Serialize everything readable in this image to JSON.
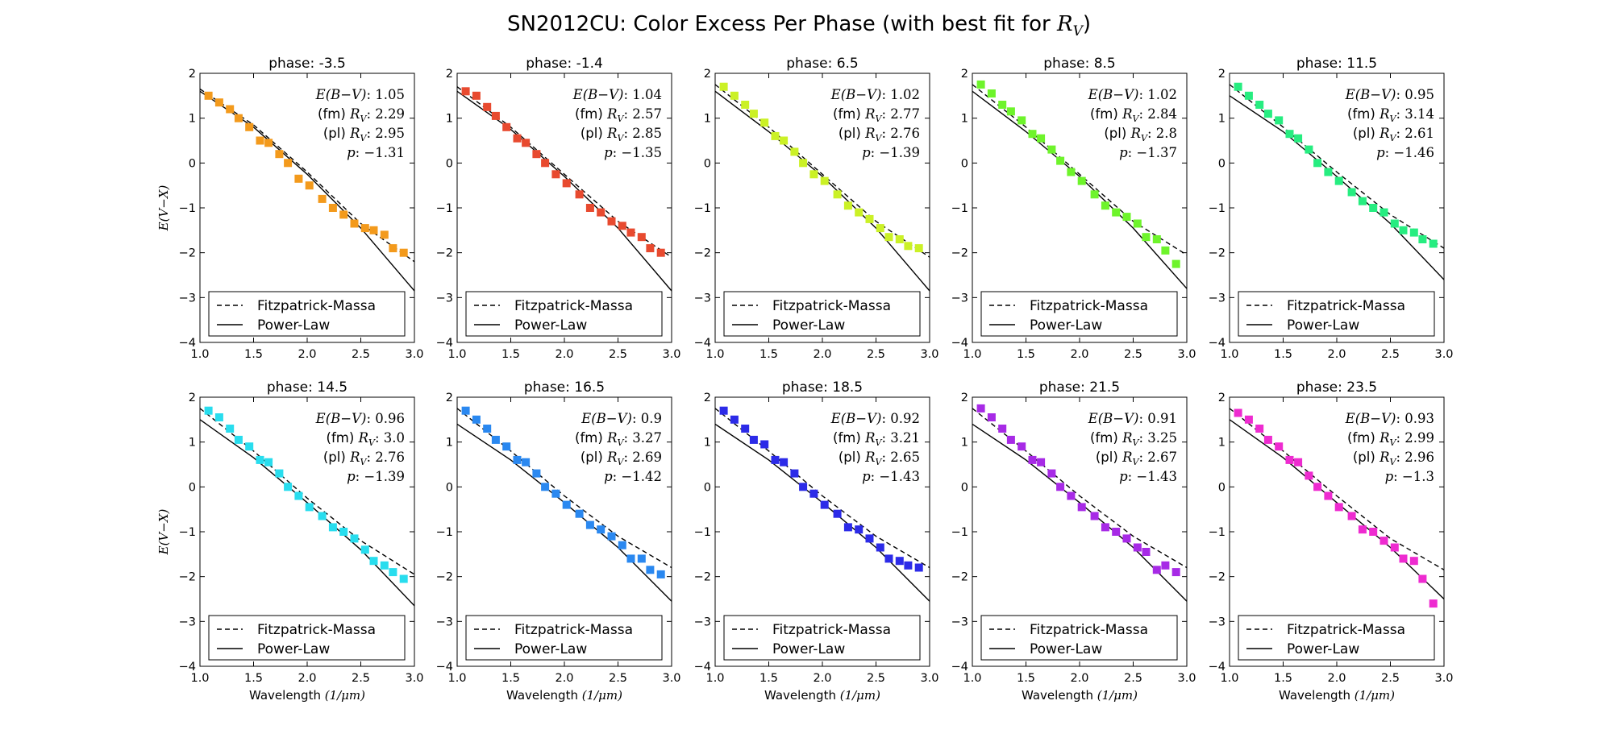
{
  "figure": {
    "title_prefix": "SN2012CU: Color Excess Per Phase (with best fit for ",
    "title_math": "R",
    "title_math_sub": "V",
    "title_suffix": ")"
  },
  "legend": [
    "Fitzpatrick-Massa",
    "Power-Law"
  ],
  "annotation_labels": {
    "ebv_label": "E(B−V)",
    "fm_prefix": "(fm) ",
    "pl_prefix": "(pl) ",
    "rv_label": "R",
    "rv_sub": "V",
    "p_label": "p"
  },
  "axes": {
    "xlabel_text": "Wavelength ",
    "xlabel_math": "(1/μm)",
    "ylabel_math": "E(V−X)",
    "xlim": [
      1.0,
      3.0
    ],
    "ylim": [
      -4,
      2
    ],
    "xticks": [
      "1.0",
      "1.5",
      "2.0",
      "2.5",
      "3.0"
    ],
    "yticks": [
      "2",
      "1",
      "0",
      "−1",
      "−2",
      "−3",
      "−4"
    ]
  },
  "chart_data": [
    {
      "type": "scatter",
      "phase": "phase: -3.5",
      "color": "#f39a1c",
      "ebv": "1.05",
      "rv_fm": "2.29",
      "rv_pl": "2.95",
      "p": "−1.31",
      "x": [
        1.08,
        1.18,
        1.28,
        1.36,
        1.46,
        1.56,
        1.64,
        1.74,
        1.82,
        1.92,
        2.02,
        2.14,
        2.24,
        2.34,
        2.44,
        2.54,
        2.62,
        2.72,
        2.8,
        2.9
      ],
      "y": [
        1.5,
        1.35,
        1.2,
        1.0,
        0.8,
        0.5,
        0.45,
        0.2,
        0.0,
        -0.35,
        -0.5,
        -0.8,
        -1.0,
        -1.15,
        -1.35,
        -1.45,
        -1.5,
        -1.6,
        -1.9,
        -2.0
      ],
      "fm": [
        [
          1.0,
          1.65
        ],
        [
          1.5,
          0.85
        ],
        [
          2.0,
          -0.2
        ],
        [
          2.5,
          -1.35
        ],
        [
          3.0,
          -2.2
        ]
      ],
      "pl": [
        [
          1.0,
          1.6
        ],
        [
          1.5,
          0.8
        ],
        [
          2.0,
          -0.25
        ],
        [
          2.5,
          -1.45
        ],
        [
          3.0,
          -2.85
        ]
      ]
    },
    {
      "type": "scatter",
      "phase": "phase: -1.4",
      "color": "#e84a2f",
      "ebv": "1.04",
      "rv_fm": "2.57",
      "rv_pl": "2.85",
      "p": "−1.35",
      "x": [
        1.08,
        1.18,
        1.28,
        1.36,
        1.46,
        1.56,
        1.64,
        1.74,
        1.82,
        1.92,
        2.02,
        2.14,
        2.24,
        2.34,
        2.44,
        2.54,
        2.62,
        2.72,
        2.8,
        2.9
      ],
      "y": [
        1.6,
        1.5,
        1.25,
        1.05,
        0.8,
        0.55,
        0.45,
        0.2,
        0.0,
        -0.25,
        -0.45,
        -0.7,
        -1.0,
        -1.1,
        -1.3,
        -1.4,
        -1.55,
        -1.65,
        -1.9,
        -2.0
      ],
      "fm": [
        [
          1.0,
          1.7
        ],
        [
          1.5,
          0.8
        ],
        [
          2.0,
          -0.25
        ],
        [
          2.5,
          -1.3
        ],
        [
          3.0,
          -2.1
        ]
      ],
      "pl": [
        [
          1.0,
          1.6
        ],
        [
          1.5,
          0.75
        ],
        [
          2.0,
          -0.3
        ],
        [
          2.5,
          -1.45
        ],
        [
          3.0,
          -2.85
        ]
      ]
    },
    {
      "type": "scatter",
      "phase": "phase: 6.5",
      "color": "#cbf126",
      "ebv": "1.02",
      "rv_fm": "2.77",
      "rv_pl": "2.76",
      "p": "−1.39",
      "x": [
        1.08,
        1.18,
        1.28,
        1.36,
        1.46,
        1.56,
        1.64,
        1.74,
        1.82,
        1.92,
        2.02,
        2.14,
        2.24,
        2.34,
        2.44,
        2.54,
        2.62,
        2.72,
        2.8,
        2.9
      ],
      "y": [
        1.7,
        1.5,
        1.3,
        1.1,
        0.9,
        0.6,
        0.5,
        0.25,
        0.0,
        -0.25,
        -0.4,
        -0.7,
        -0.95,
        -1.1,
        -1.25,
        -1.45,
        -1.65,
        -1.7,
        -1.85,
        -1.9
      ],
      "fm": [
        [
          1.0,
          1.75
        ],
        [
          1.5,
          0.8
        ],
        [
          2.0,
          -0.25
        ],
        [
          2.5,
          -1.3
        ],
        [
          3.0,
          -2.1
        ]
      ],
      "pl": [
        [
          1.0,
          1.6
        ],
        [
          1.5,
          0.7
        ],
        [
          2.0,
          -0.3
        ],
        [
          2.5,
          -1.45
        ],
        [
          3.0,
          -2.85
        ]
      ]
    },
    {
      "type": "scatter",
      "phase": "phase: 8.5",
      "color": "#6ef42b",
      "ebv": "1.02",
      "rv_fm": "2.84",
      "rv_pl": "2.8",
      "p": "−1.37",
      "x": [
        1.08,
        1.18,
        1.28,
        1.36,
        1.46,
        1.56,
        1.64,
        1.74,
        1.82,
        1.92,
        2.02,
        2.14,
        2.24,
        2.34,
        2.44,
        2.54,
        2.62,
        2.72,
        2.8,
        2.9
      ],
      "y": [
        1.75,
        1.55,
        1.3,
        1.15,
        0.95,
        0.65,
        0.55,
        0.3,
        0.05,
        -0.2,
        -0.4,
        -0.7,
        -0.95,
        -1.1,
        -1.2,
        -1.35,
        -1.65,
        -1.7,
        -1.95,
        -2.25
      ],
      "fm": [
        [
          1.0,
          1.75
        ],
        [
          1.5,
          0.8
        ],
        [
          2.0,
          -0.25
        ],
        [
          2.5,
          -1.3
        ],
        [
          3.0,
          -2.05
        ]
      ],
      "pl": [
        [
          1.0,
          1.6
        ],
        [
          1.5,
          0.7
        ],
        [
          2.0,
          -0.3
        ],
        [
          2.5,
          -1.45
        ],
        [
          3.0,
          -2.8
        ]
      ]
    },
    {
      "type": "scatter",
      "phase": "phase: 11.5",
      "color": "#26ed80",
      "ebv": "0.95",
      "rv_fm": "3.14",
      "rv_pl": "2.61",
      "p": "−1.46",
      "x": [
        1.08,
        1.18,
        1.28,
        1.36,
        1.46,
        1.56,
        1.64,
        1.74,
        1.82,
        1.92,
        2.02,
        2.14,
        2.24,
        2.34,
        2.44,
        2.54,
        2.62,
        2.72,
        2.8,
        2.9
      ],
      "y": [
        1.7,
        1.5,
        1.3,
        1.1,
        0.95,
        0.65,
        0.55,
        0.3,
        0.0,
        -0.2,
        -0.4,
        -0.65,
        -0.85,
        -1.0,
        -1.1,
        -1.35,
        -1.5,
        -1.55,
        -1.7,
        -1.8
      ],
      "fm": [
        [
          1.0,
          1.75
        ],
        [
          1.5,
          0.8
        ],
        [
          2.0,
          -0.2
        ],
        [
          2.5,
          -1.15
        ],
        [
          3.0,
          -1.9
        ]
      ],
      "pl": [
        [
          1.0,
          1.5
        ],
        [
          1.5,
          0.7
        ],
        [
          2.0,
          -0.3
        ],
        [
          2.5,
          -1.35
        ],
        [
          3.0,
          -2.6
        ]
      ]
    },
    {
      "type": "scatter",
      "phase": "phase: 14.5",
      "color": "#28ddee",
      "ebv": "0.96",
      "rv_fm": "3.0",
      "rv_pl": "2.76",
      "p": "−1.39",
      "x": [
        1.08,
        1.18,
        1.28,
        1.36,
        1.46,
        1.56,
        1.64,
        1.74,
        1.82,
        1.92,
        2.02,
        2.14,
        2.24,
        2.34,
        2.44,
        2.54,
        2.62,
        2.72,
        2.8,
        2.9
      ],
      "y": [
        1.7,
        1.55,
        1.3,
        1.05,
        0.9,
        0.6,
        0.55,
        0.3,
        0.0,
        -0.2,
        -0.45,
        -0.65,
        -0.9,
        -1.0,
        -1.15,
        -1.4,
        -1.65,
        -1.75,
        -1.9,
        -2.05
      ],
      "fm": [
        [
          1.0,
          1.75
        ],
        [
          1.5,
          0.8
        ],
        [
          2.0,
          -0.25
        ],
        [
          2.5,
          -1.2
        ],
        [
          3.0,
          -1.95
        ]
      ],
      "pl": [
        [
          1.0,
          1.5
        ],
        [
          1.5,
          0.65
        ],
        [
          2.0,
          -0.35
        ],
        [
          2.5,
          -1.4
        ],
        [
          3.0,
          -2.65
        ]
      ]
    },
    {
      "type": "scatter",
      "phase": "phase: 16.5",
      "color": "#2a88f0",
      "ebv": "0.9",
      "rv_fm": "3.27",
      "rv_pl": "2.69",
      "p": "−1.42",
      "x": [
        1.08,
        1.18,
        1.28,
        1.36,
        1.46,
        1.56,
        1.64,
        1.74,
        1.82,
        1.92,
        2.02,
        2.14,
        2.24,
        2.34,
        2.44,
        2.54,
        2.62,
        2.72,
        2.8,
        2.9
      ],
      "y": [
        1.7,
        1.5,
        1.3,
        1.05,
        0.9,
        0.6,
        0.55,
        0.3,
        0.0,
        -0.15,
        -0.4,
        -0.6,
        -0.85,
        -0.95,
        -1.1,
        -1.3,
        -1.6,
        -1.6,
        -1.85,
        -1.95
      ],
      "fm": [
        [
          1.0,
          1.75
        ],
        [
          1.5,
          0.8
        ],
        [
          2.0,
          -0.2
        ],
        [
          2.5,
          -1.1
        ],
        [
          3.0,
          -1.8
        ]
      ],
      "pl": [
        [
          1.0,
          1.4
        ],
        [
          1.5,
          0.6
        ],
        [
          2.0,
          -0.35
        ],
        [
          2.5,
          -1.35
        ],
        [
          3.0,
          -2.55
        ]
      ]
    },
    {
      "type": "scatter",
      "phase": "phase: 18.5",
      "color": "#2c2be8",
      "ebv": "0.92",
      "rv_fm": "3.21",
      "rv_pl": "2.65",
      "p": "−1.43",
      "x": [
        1.08,
        1.18,
        1.28,
        1.36,
        1.46,
        1.56,
        1.64,
        1.74,
        1.82,
        1.92,
        2.02,
        2.14,
        2.24,
        2.34,
        2.44,
        2.54,
        2.62,
        2.72,
        2.8,
        2.9
      ],
      "y": [
        1.7,
        1.5,
        1.3,
        1.05,
        0.95,
        0.6,
        0.55,
        0.3,
        0.0,
        -0.15,
        -0.4,
        -0.6,
        -0.9,
        -0.95,
        -1.15,
        -1.35,
        -1.6,
        -1.65,
        -1.75,
        -1.8
      ],
      "fm": [
        [
          1.0,
          1.75
        ],
        [
          1.5,
          0.8
        ],
        [
          2.0,
          -0.2
        ],
        [
          2.5,
          -1.1
        ],
        [
          3.0,
          -1.8
        ]
      ],
      "pl": [
        [
          1.0,
          1.4
        ],
        [
          1.5,
          0.6
        ],
        [
          2.0,
          -0.35
        ],
        [
          2.5,
          -1.35
        ],
        [
          3.0,
          -2.55
        ]
      ]
    },
    {
      "type": "scatter",
      "phase": "phase: 21.5",
      "color": "#a72ae6",
      "ebv": "0.91",
      "rv_fm": "3.25",
      "rv_pl": "2.67",
      "p": "−1.43",
      "x": [
        1.08,
        1.18,
        1.28,
        1.36,
        1.46,
        1.56,
        1.64,
        1.74,
        1.82,
        1.92,
        2.02,
        2.14,
        2.24,
        2.34,
        2.44,
        2.54,
        2.62,
        2.72,
        2.8,
        2.9
      ],
      "y": [
        1.75,
        1.55,
        1.3,
        1.05,
        0.9,
        0.6,
        0.55,
        0.3,
        0.0,
        -0.2,
        -0.45,
        -0.65,
        -0.9,
        -1.0,
        -1.15,
        -1.35,
        -1.45,
        -1.85,
        -1.75,
        -1.9
      ],
      "fm": [
        [
          1.0,
          1.75
        ],
        [
          1.5,
          0.8
        ],
        [
          2.0,
          -0.2
        ],
        [
          2.5,
          -1.1
        ],
        [
          3.0,
          -1.8
        ]
      ],
      "pl": [
        [
          1.0,
          1.4
        ],
        [
          1.5,
          0.6
        ],
        [
          2.0,
          -0.35
        ],
        [
          2.5,
          -1.35
        ],
        [
          3.0,
          -2.55
        ]
      ]
    },
    {
      "type": "scatter",
      "phase": "phase: 23.5",
      "color": "#ee2bd0",
      "ebv": "0.93",
      "rv_fm": "2.99",
      "rv_pl": "2.96",
      "p": "−1.3",
      "x": [
        1.08,
        1.18,
        1.28,
        1.36,
        1.46,
        1.56,
        1.64,
        1.74,
        1.82,
        1.92,
        2.02,
        2.14,
        2.24,
        2.34,
        2.44,
        2.54,
        2.62,
        2.72,
        2.8,
        2.9
      ],
      "y": [
        1.65,
        1.5,
        1.3,
        1.05,
        0.9,
        0.6,
        0.55,
        0.25,
        0.0,
        -0.2,
        -0.45,
        -0.65,
        -0.95,
        -1.0,
        -1.2,
        -1.35,
        -1.6,
        -1.65,
        -2.05,
        -2.6
      ],
      "fm": [
        [
          1.0,
          1.75
        ],
        [
          1.5,
          0.8
        ],
        [
          2.0,
          -0.2
        ],
        [
          2.5,
          -1.15
        ],
        [
          3.0,
          -1.85
        ]
      ],
      "pl": [
        [
          1.0,
          1.5
        ],
        [
          1.5,
          0.65
        ],
        [
          2.0,
          -0.35
        ],
        [
          2.5,
          -1.35
        ],
        [
          3.0,
          -2.5
        ]
      ]
    }
  ]
}
